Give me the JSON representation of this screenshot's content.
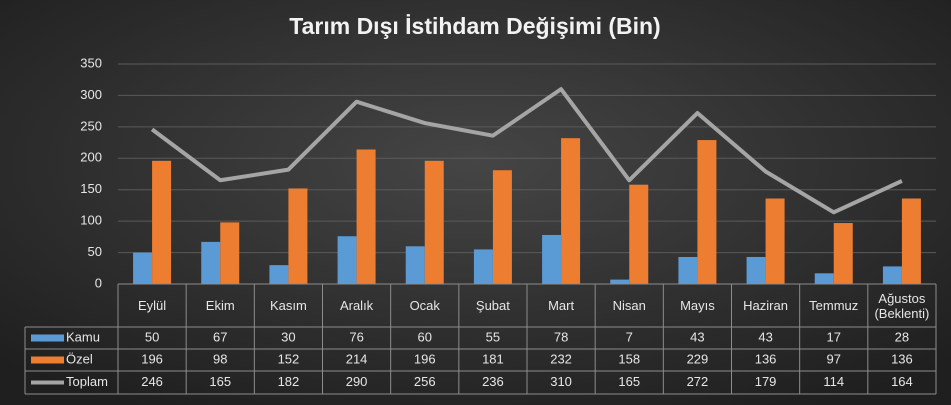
{
  "chart_data": {
    "type": "bar-line",
    "title": "Tarım Dışı İstihdam Değişimi (Bin)",
    "categories": [
      "Eylül",
      "Ekim",
      "Kasım",
      "Aralık",
      "Ocak",
      "Şubat",
      "Mart",
      "Nisan",
      "Mayıs",
      "Haziran",
      "Temmuz",
      "Ağustos (Beklenti)"
    ],
    "series": [
      {
        "name": "Kamu",
        "type": "bar",
        "color": "#5b9bd5",
        "values": [
          50,
          67,
          30,
          76,
          60,
          55,
          78,
          7,
          43,
          43,
          17,
          28
        ]
      },
      {
        "name": "Özel",
        "type": "bar",
        "color": "#ed7d31",
        "values": [
          196,
          98,
          152,
          214,
          196,
          181,
          232,
          158,
          229,
          136,
          97,
          136
        ]
      },
      {
        "name": "Toplam",
        "type": "line",
        "color": "#a5a5a5",
        "values": [
          246,
          165,
          182,
          290,
          256,
          236,
          310,
          165,
          272,
          179,
          114,
          164
        ]
      }
    ],
    "ylim": [
      0,
      350
    ],
    "yticks": [
      0,
      50,
      100,
      150,
      200,
      250,
      300,
      350
    ],
    "grid": true,
    "data_table": true
  }
}
